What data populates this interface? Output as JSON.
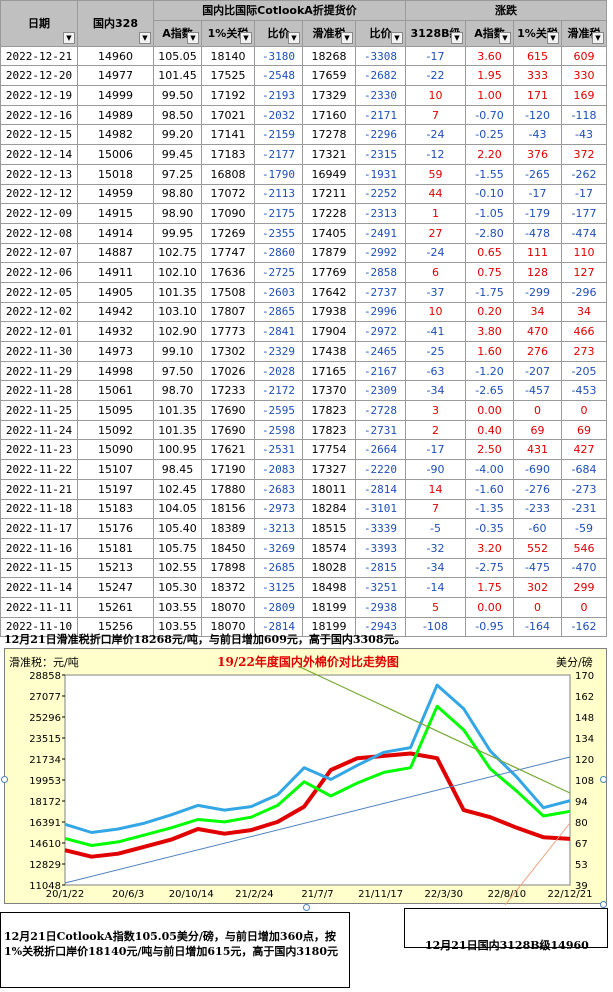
{
  "header": {
    "date": "日期",
    "domestic": "国内328",
    "group_title": "国内比国际CotlookA折提货价",
    "change_title": "涨跌",
    "cols": [
      "A指数",
      "1%关税",
      "比价",
      "滑准税",
      "比价"
    ],
    "change_cols": [
      "3128B级",
      "A指数",
      "1%关税",
      "滑准税"
    ],
    "filter_icon": "▼"
  },
  "rows": [
    [
      "2022-12-21",
      "14960",
      "105.05",
      "18140",
      "-3180",
      "18268",
      "-3308",
      "-17",
      "3.60",
      "615",
      "609"
    ],
    [
      "2022-12-20",
      "14977",
      "101.45",
      "17525",
      "-2548",
      "17659",
      "-2682",
      "-22",
      "1.95",
      "333",
      "330"
    ],
    [
      "2022-12-19",
      "14999",
      "99.50",
      "17192",
      "-2193",
      "17329",
      "-2330",
      "10",
      "1.00",
      "171",
      "169"
    ],
    [
      "2022-12-16",
      "14989",
      "98.50",
      "17021",
      "-2032",
      "17160",
      "-2171",
      "7",
      "-0.70",
      "-120",
      "-118"
    ],
    [
      "2022-12-15",
      "14982",
      "99.20",
      "17141",
      "-2159",
      "17278",
      "-2296",
      "-24",
      "-0.25",
      "-43",
      "-43"
    ],
    [
      "2022-12-14",
      "15006",
      "99.45",
      "17183",
      "-2177",
      "17321",
      "-2315",
      "-12",
      "2.20",
      "376",
      "372"
    ],
    [
      "2022-12-13",
      "15018",
      "97.25",
      "16808",
      "-1790",
      "16949",
      "-1931",
      "59",
      "-1.55",
      "-265",
      "-262"
    ],
    [
      "2022-12-12",
      "14959",
      "98.80",
      "17072",
      "-2113",
      "17211",
      "-2252",
      "44",
      "-0.10",
      "-17",
      "-17"
    ],
    [
      "2022-12-09",
      "14915",
      "98.90",
      "17090",
      "-2175",
      "17228",
      "-2313",
      "1",
      "-1.05",
      "-179",
      "-177"
    ],
    [
      "2022-12-08",
      "14914",
      "99.95",
      "17269",
      "-2355",
      "17405",
      "-2491",
      "27",
      "-2.80",
      "-478",
      "-474"
    ],
    [
      "2022-12-07",
      "14887",
      "102.75",
      "17747",
      "-2860",
      "17879",
      "-2992",
      "-24",
      "0.65",
      "111",
      "110"
    ],
    [
      "2022-12-06",
      "14911",
      "102.10",
      "17636",
      "-2725",
      "17769",
      "-2858",
      "6",
      "0.75",
      "128",
      "127"
    ],
    [
      "2022-12-05",
      "14905",
      "101.35",
      "17508",
      "-2603",
      "17642",
      "-2737",
      "-37",
      "-1.75",
      "-299",
      "-296"
    ],
    [
      "2022-12-02",
      "14942",
      "103.10",
      "17807",
      "-2865",
      "17938",
      "-2996",
      "10",
      "0.20",
      "34",
      "34"
    ],
    [
      "2022-12-01",
      "14932",
      "102.90",
      "17773",
      "-2841",
      "17904",
      "-2972",
      "-41",
      "3.80",
      "470",
      "466"
    ],
    [
      "2022-11-30",
      "14973",
      "99.10",
      "17302",
      "-2329",
      "17438",
      "-2465",
      "-25",
      "1.60",
      "276",
      "273"
    ],
    [
      "2022-11-29",
      "14998",
      "97.50",
      "17026",
      "-2028",
      "17165",
      "-2167",
      "-63",
      "-1.20",
      "-207",
      "-205"
    ],
    [
      "2022-11-28",
      "15061",
      "98.70",
      "17233",
      "-2172",
      "17370",
      "-2309",
      "-34",
      "-2.65",
      "-457",
      "-453"
    ],
    [
      "2022-11-25",
      "15095",
      "101.35",
      "17690",
      "-2595",
      "17823",
      "-2728",
      "3",
      "0.00",
      "0",
      "0"
    ],
    [
      "2022-11-24",
      "15092",
      "101.35",
      "17690",
      "-2598",
      "17823",
      "-2731",
      "2",
      "0.40",
      "69",
      "69"
    ],
    [
      "2022-11-23",
      "15090",
      "100.95",
      "17621",
      "-2531",
      "17754",
      "-2664",
      "-17",
      "2.50",
      "431",
      "427"
    ],
    [
      "2022-11-22",
      "15107",
      "98.45",
      "17190",
      "-2083",
      "17327",
      "-2220",
      "-90",
      "-4.00",
      "-690",
      "-684"
    ],
    [
      "2022-11-21",
      "15197",
      "102.45",
      "17880",
      "-2683",
      "18011",
      "-2814",
      "14",
      "-1.60",
      "-276",
      "-273"
    ],
    [
      "2022-11-18",
      "15183",
      "104.05",
      "18156",
      "-2973",
      "18284",
      "-3101",
      "7",
      "-1.35",
      "-233",
      "-231"
    ],
    [
      "2022-11-17",
      "15176",
      "105.40",
      "18389",
      "-3213",
      "18515",
      "-3339",
      "-5",
      "-0.35",
      "-60",
      "-59"
    ],
    [
      "2022-11-16",
      "15181",
      "105.75",
      "18450",
      "-3269",
      "18574",
      "-3393",
      "-32",
      "3.20",
      "552",
      "546"
    ],
    [
      "2022-11-15",
      "15213",
      "102.55",
      "17898",
      "-2685",
      "18028",
      "-2815",
      "-34",
      "-2.75",
      "-475",
      "-470"
    ],
    [
      "2022-11-14",
      "15247",
      "105.30",
      "18372",
      "-3125",
      "18498",
      "-3251",
      "-14",
      "1.75",
      "302",
      "299"
    ],
    [
      "2022-11-11",
      "15261",
      "103.55",
      "18070",
      "-2809",
      "18199",
      "-2938",
      "5",
      "0.00",
      "0",
      "0"
    ],
    [
      "2022-11-10",
      "15256",
      "103.55",
      "18070",
      "-2814",
      "18199",
      "-2943",
      "-108",
      "-0.95",
      "-164",
      "-162"
    ]
  ],
  "notice": "12月21日滑准税折口岸价18268元/吨，与前日增加609元，高于国内3308元。",
  "note_left": "12月21日CotlookA指数105.05美分/磅，与前日增加360点，按1%关税折口岸价18140元/吨与前日增加615元，高于国内3180元",
  "note_right": "12月21日国内3128B级14960",
  "colors": {
    "red": "#e00000",
    "blue": "#1f4fb5",
    "green": "#00ff00",
    "skyblue": "#33a6e6",
    "chart_bg": "#ffffcc"
  },
  "chart_data": {
    "type": "line",
    "title": "19/22年度国内外棉价对比走势图",
    "ylabel_left": "滑准税：元/吨",
    "ylabel_right": "美分/磅",
    "y_ticks_left": [
      "28858",
      "27077",
      "25296",
      "23515",
      "21734",
      "19953",
      "18172",
      "16391",
      "14610",
      "12829",
      "11048"
    ],
    "y_ticks_right": [
      "170",
      "162",
      "148",
      "134",
      "120",
      "108",
      "94",
      "80",
      "67",
      "53",
      "39"
    ],
    "ylim": [
      11048,
      28858
    ],
    "x_ticks": [
      "20/1/22",
      "20/6/3",
      "20/10/14",
      "21/2/24",
      "21/7/7",
      "21/11/17",
      "22/3/30",
      "22/8/10",
      "22/12/21"
    ],
    "series": [
      {
        "color_key": "red",
        "values": [
          14000,
          13450,
          13700,
          14300,
          14900,
          15800,
          15400,
          15700,
          16400,
          17700,
          20800,
          21800,
          22000,
          22200,
          21800,
          17400,
          16800,
          15900,
          15100,
          14960
        ]
      },
      {
        "color_key": "green",
        "values": [
          15000,
          14400,
          14700,
          15300,
          15900,
          16600,
          16400,
          16800,
          17800,
          19800,
          18600,
          19700,
          20600,
          21000,
          26200,
          24200,
          20900,
          19000,
          16900,
          17300
        ]
      },
      {
        "color_key": "skyblue",
        "values": [
          16200,
          15500,
          15800,
          16300,
          17000,
          17800,
          17400,
          17700,
          18700,
          21000,
          20000,
          21200,
          22300,
          22700,
          28000,
          26000,
          22400,
          20200,
          17600,
          18200
        ]
      }
    ]
  }
}
